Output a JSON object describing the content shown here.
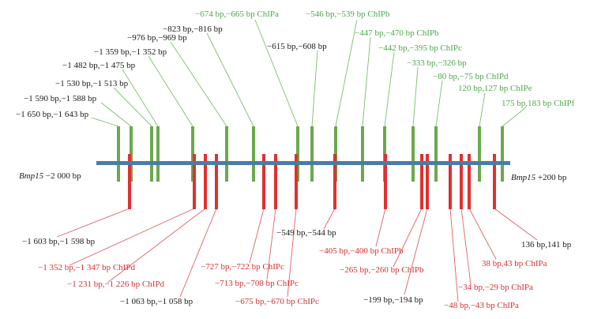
{
  "gene": "Bmp15",
  "left_end": " −2 000 bp",
  "right_end": " +200 bp",
  "colors": {
    "axis": "#4a7ca8",
    "upper": "#6aa84f",
    "lower": "#e03030",
    "label_green": "#4aa84a",
    "label_red": "#d63030",
    "label_black": "#1a1a1a",
    "leader": "#7cbf6a",
    "leader_red": "#e06060"
  },
  "upper_sites": [
    {
      "id": "u1",
      "text": "−1 650 bp,−1 643 bp",
      "color": "black"
    },
    {
      "id": "u2",
      "text": "−1 590 bp,−1 588 bp",
      "color": "black"
    },
    {
      "id": "u3",
      "text": "−1 530 bp,−1 513 bp",
      "color": "black"
    },
    {
      "id": "u4",
      "text": "−1 482 bp,−1 475 bp",
      "color": "black"
    },
    {
      "id": "u5",
      "text": "−1 359 bp,−1 352 bp",
      "color": "black"
    },
    {
      "id": "u6",
      "text": "−976 bp,−969 bp",
      "color": "black"
    },
    {
      "id": "u7",
      "text": "−823 bp,−816 bp",
      "color": "black"
    },
    {
      "id": "u8",
      "text": "−674 bp,−665 bp ChIPa",
      "color": "green"
    },
    {
      "id": "u9",
      "text": "−615 bp,−608 bp",
      "color": "black"
    },
    {
      "id": "u10",
      "text": "−546 bp,−539 bp ChIPb",
      "color": "green"
    },
    {
      "id": "u11",
      "text": "−447 bp,−470 bp ChIPb",
      "color": "green"
    },
    {
      "id": "u12",
      "text": "−442 bp,−395 bp ChIPc",
      "color": "green"
    },
    {
      "id": "u13",
      "text": "−333 bp,−326 bp",
      "color": "green"
    },
    {
      "id": "u14",
      "text": "−80 bp,−75 bp ChIPd",
      "color": "green"
    },
    {
      "id": "u15",
      "text": "120 bp,127 bp ChIPe",
      "color": "green"
    },
    {
      "id": "u16",
      "text": "175 bp,183 bp ChIPf",
      "color": "green"
    }
  ],
  "lower_sites": [
    {
      "id": "l1",
      "text": "−1 603 bp,−1 598 bp",
      "color": "black"
    },
    {
      "id": "l2",
      "text": "−1 352 bp,−1 347 bp ChIPd",
      "color": "red"
    },
    {
      "id": "l3",
      "text": "−1 231 bp,−1 226 bp ChIPd",
      "color": "red"
    },
    {
      "id": "l4",
      "text": "−1 063 bp,−1 058 bp",
      "color": "black"
    },
    {
      "id": "l5",
      "text": "−727 bp,−722 bp ChIPc",
      "color": "red"
    },
    {
      "id": "l6",
      "text": "−713 bp,−708 bp ChIPc",
      "color": "red"
    },
    {
      "id": "l7",
      "text": "−675 bp,−670 bp ChIPc",
      "color": "red"
    },
    {
      "id": "l8",
      "text": "−549 bp,−544 bp",
      "color": "black"
    },
    {
      "id": "l9",
      "text": "−405 bp,−400 bp ChIPb",
      "color": "red"
    },
    {
      "id": "l10",
      "text": "−265 bp,−260 bp ChIPb",
      "color": "red"
    },
    {
      "id": "l11",
      "text": "−199 bp,−194 bp",
      "color": "black"
    },
    {
      "id": "l12",
      "text": "−48 bp,−43 bp ChIPa",
      "color": "red"
    },
    {
      "id": "l13",
      "text": "−34 bp,−29 bp ChIPa",
      "color": "red"
    },
    {
      "id": "l14",
      "text": "38 bp,43 bp ChIPa",
      "color": "red"
    },
    {
      "id": "l15",
      "text": "136 bp,141 bp",
      "color": "black"
    }
  ]
}
